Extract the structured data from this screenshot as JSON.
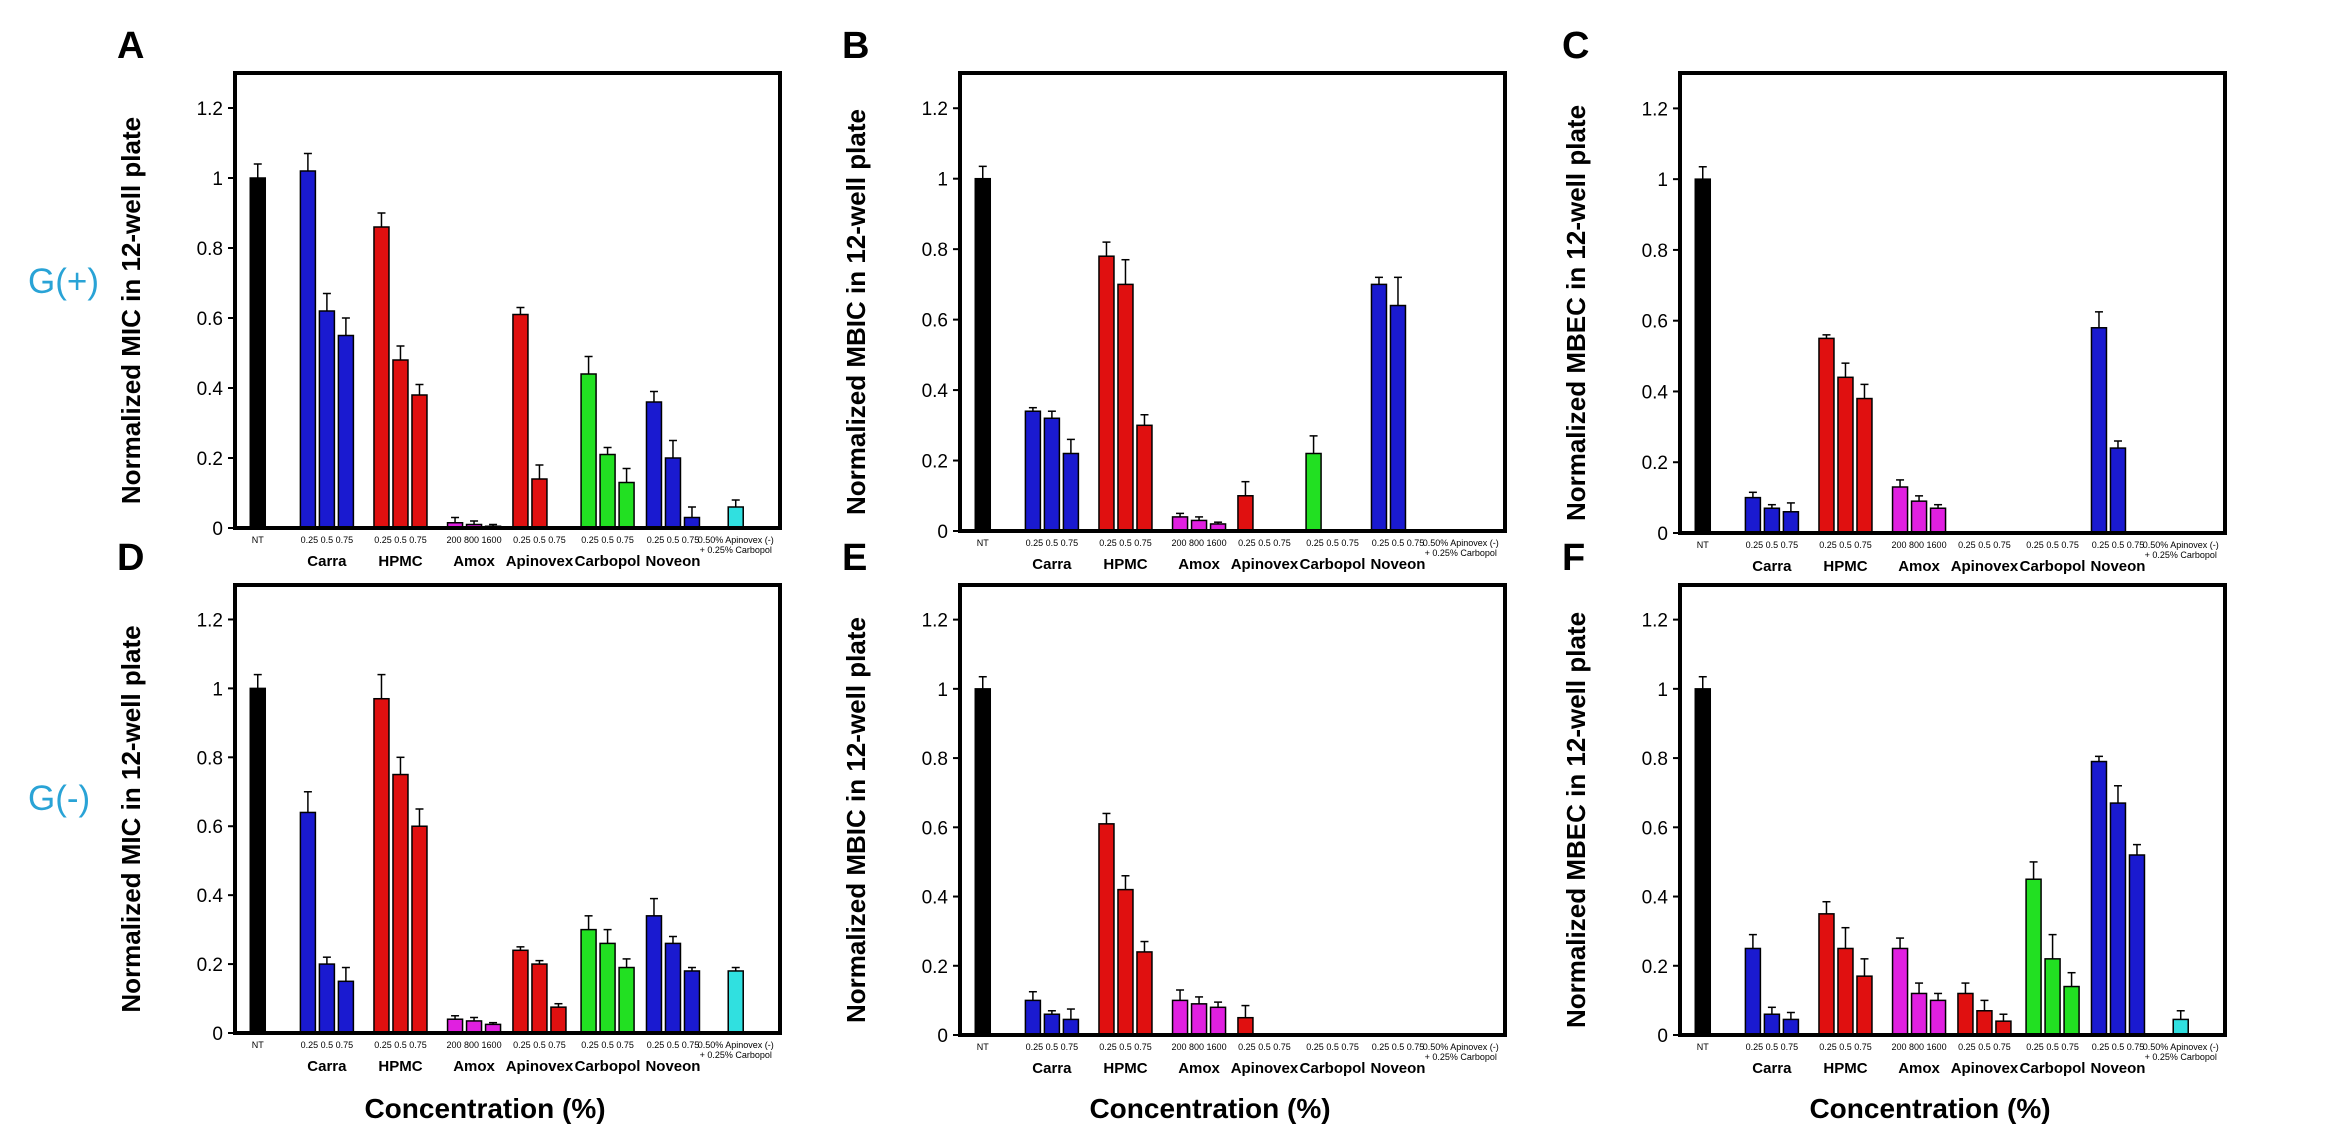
{
  "row_labels": [
    "G(+)",
    "G(-)"
  ],
  "x_axis_label": "Concentration (%)",
  "colors": {
    "NT": "#000000",
    "Carra": "#1a1ad0",
    "HPMC": "#e01010",
    "Amox": "#e020e0",
    "Apinovex": "#e01010",
    "Carbopol": "#22e022",
    "Noveon": "#1a1ad0",
    "Combo": "#30e0e0"
  },
  "chart_data": [
    {
      "panel": "A",
      "type": "bar",
      "ylabel": "Normalized MIC in 12-well plate",
      "ylim": [
        0,
        1.3
      ],
      "yticks": [
        "0",
        "0.2",
        "0.4",
        "0.6",
        "0.8",
        "1",
        "1.2"
      ],
      "grid": false,
      "groups": [
        {
          "name": "",
          "conc_label": "NT",
          "values": [
            1.0
          ],
          "errors": [
            0.04
          ]
        },
        {
          "name": "Carra",
          "conc_label": "0.25 0.5 0.75",
          "values": [
            1.02,
            0.62,
            0.55
          ],
          "errors": [
            0.05,
            0.05,
            0.05
          ]
        },
        {
          "name": "HPMC",
          "conc_label": "0.25 0.5 0.75",
          "values": [
            0.86,
            0.48,
            0.38
          ],
          "errors": [
            0.04,
            0.04,
            0.03
          ]
        },
        {
          "name": "Amox",
          "conc_label": "200 800 1600",
          "values": [
            0.015,
            0.01,
            0.005
          ],
          "errors": [
            0.015,
            0.01,
            0.005
          ]
        },
        {
          "name": "Apinovex",
          "conc_label": "0.25 0.5 0.75",
          "values": [
            0.61,
            0.14,
            0.0
          ],
          "errors": [
            0.02,
            0.04,
            0.0
          ]
        },
        {
          "name": "Carbopol",
          "conc_label": "0.25 0.5 0.75",
          "values": [
            0.44,
            0.21,
            0.13
          ],
          "errors": [
            0.05,
            0.02,
            0.04
          ]
        },
        {
          "name": "Noveon",
          "conc_label": "0.25 0.5 0.75",
          "values": [
            0.36,
            0.2,
            0.03
          ],
          "errors": [
            0.03,
            0.05,
            0.03
          ]
        },
        {
          "name": "",
          "conc_label": "0.50% Apinovex (-)",
          "conc_label2": "+ 0.25% Carbopol",
          "values": [
            0.06
          ],
          "errors": [
            0.02
          ]
        }
      ]
    },
    {
      "panel": "B",
      "type": "bar",
      "ylabel": "Normalized MBIC in 12-well plate",
      "ylim": [
        0,
        1.3
      ],
      "yticks": [
        "0",
        "0.2",
        "0.4",
        "0.6",
        "0.8",
        "1",
        "1.2"
      ],
      "grid": false,
      "groups": [
        {
          "name": "",
          "conc_label": "NT",
          "values": [
            1.0
          ],
          "errors": [
            0.035
          ]
        },
        {
          "name": "Carra",
          "conc_label": "0.25 0.5 0.75",
          "values": [
            0.34,
            0.32,
            0.22
          ],
          "errors": [
            0.01,
            0.02,
            0.04
          ]
        },
        {
          "name": "HPMC",
          "conc_label": "0.25 0.5 0.75",
          "values": [
            0.78,
            0.7,
            0.3
          ],
          "errors": [
            0.04,
            0.07,
            0.03
          ]
        },
        {
          "name": "Amox",
          "conc_label": "200 800 1600",
          "values": [
            0.04,
            0.03,
            0.02
          ],
          "errors": [
            0.01,
            0.01,
            0.005
          ]
        },
        {
          "name": "Apinovex",
          "conc_label": "0.25 0.5 0.75",
          "values": [
            0.1,
            0.0,
            0.0
          ],
          "errors": [
            0.04,
            0.0,
            0.0
          ]
        },
        {
          "name": "Carbopol",
          "conc_label": "0.25 0.5 0.75",
          "values": [
            0.22,
            0.0,
            0.0
          ],
          "errors": [
            0.05,
            0.0,
            0.0
          ]
        },
        {
          "name": "Noveon",
          "conc_label": "0.25 0.5 0.75",
          "values": [
            0.7,
            0.64,
            0.0
          ],
          "errors": [
            0.02,
            0.08,
            0.0
          ]
        },
        {
          "name": "",
          "conc_label": "0.50% Apinovex (-)",
          "conc_label2": "+ 0.25% Carbopol",
          "values": [
            0.0
          ],
          "errors": [
            0.0
          ]
        }
      ]
    },
    {
      "panel": "C",
      "type": "bar",
      "ylabel": "Normalized MBEC in 12-well plate",
      "ylim": [
        0,
        1.3
      ],
      "yticks": [
        "0",
        "0.2",
        "0.4",
        "0.6",
        "0.8",
        "1",
        "1.2"
      ],
      "grid": false,
      "groups": [
        {
          "name": "",
          "conc_label": "NT",
          "values": [
            1.0
          ],
          "errors": [
            0.035
          ]
        },
        {
          "name": "Carra",
          "conc_label": "0.25 0.5 0.75",
          "values": [
            0.1,
            0.07,
            0.06
          ],
          "errors": [
            0.015,
            0.01,
            0.025
          ]
        },
        {
          "name": "HPMC",
          "conc_label": "0.25 0.5 0.75",
          "values": [
            0.55,
            0.44,
            0.38
          ],
          "errors": [
            0.01,
            0.04,
            0.04
          ]
        },
        {
          "name": "Amox",
          "conc_label": "200 800 1600",
          "values": [
            0.13,
            0.09,
            0.07
          ],
          "errors": [
            0.02,
            0.015,
            0.01
          ]
        },
        {
          "name": "Apinovex",
          "conc_label": "0.25 0.5 0.75",
          "values": [
            0.0,
            0.0,
            0.0
          ],
          "errors": [
            0.0,
            0.0,
            0.0
          ]
        },
        {
          "name": "Carbopol",
          "conc_label": "0.25 0.5 0.75",
          "values": [
            0.0,
            0.0,
            0.0
          ],
          "errors": [
            0.0,
            0.0,
            0.0
          ]
        },
        {
          "name": "Noveon",
          "conc_label": "0.25 0.5 0.75",
          "values": [
            0.58,
            0.24,
            0.0
          ],
          "errors": [
            0.045,
            0.02,
            0.0
          ]
        },
        {
          "name": "",
          "conc_label": "0.50% Apinovex (-)",
          "conc_label2": "+ 0.25% Carbopol",
          "values": [
            0.0
          ],
          "errors": [
            0.0
          ]
        }
      ]
    },
    {
      "panel": "D",
      "type": "bar",
      "ylabel": "Normalized MIC in 12-well plate",
      "ylim": [
        0,
        1.3
      ],
      "yticks": [
        "0",
        "0.2",
        "0.4",
        "0.6",
        "0.8",
        "1",
        "1.2"
      ],
      "grid": false,
      "groups": [
        {
          "name": "",
          "conc_label": "NT",
          "values": [
            1.0
          ],
          "errors": [
            0.04
          ]
        },
        {
          "name": "Carra",
          "conc_label": "0.25 0.5 0.75",
          "values": [
            0.64,
            0.2,
            0.15
          ],
          "errors": [
            0.06,
            0.02,
            0.04
          ]
        },
        {
          "name": "HPMC",
          "conc_label": "0.25 0.5 0.75",
          "values": [
            0.97,
            0.75,
            0.6
          ],
          "errors": [
            0.07,
            0.05,
            0.05
          ]
        },
        {
          "name": "Amox",
          "conc_label": "200 800 1600",
          "values": [
            0.04,
            0.035,
            0.025
          ],
          "errors": [
            0.01,
            0.01,
            0.005
          ]
        },
        {
          "name": "Apinovex",
          "conc_label": "0.25 0.5 0.75",
          "values": [
            0.24,
            0.2,
            0.075
          ],
          "errors": [
            0.01,
            0.01,
            0.01
          ]
        },
        {
          "name": "Carbopol",
          "conc_label": "0.25 0.5 0.75",
          "values": [
            0.3,
            0.26,
            0.19
          ],
          "errors": [
            0.04,
            0.04,
            0.025
          ]
        },
        {
          "name": "Noveon",
          "conc_label": "0.25 0.5 0.75",
          "values": [
            0.34,
            0.26,
            0.18
          ],
          "errors": [
            0.05,
            0.02,
            0.01
          ]
        },
        {
          "name": "",
          "conc_label": "0.50% Apinovex (-)",
          "conc_label2": "+ 0.25% Carbopol",
          "values": [
            0.18
          ],
          "errors": [
            0.01
          ]
        }
      ]
    },
    {
      "panel": "E",
      "type": "bar",
      "ylabel": "Normalized MBIC in 12-well plate",
      "ylim": [
        0,
        1.3
      ],
      "yticks": [
        "0",
        "0.2",
        "0.4",
        "0.6",
        "0.8",
        "1",
        "1.2"
      ],
      "grid": false,
      "groups": [
        {
          "name": "",
          "conc_label": "NT",
          "values": [
            1.0
          ],
          "errors": [
            0.035
          ]
        },
        {
          "name": "Carra",
          "conc_label": "0.25 0.5 0.75",
          "values": [
            0.1,
            0.06,
            0.045
          ],
          "errors": [
            0.025,
            0.01,
            0.03
          ]
        },
        {
          "name": "HPMC",
          "conc_label": "0.25 0.5 0.75",
          "values": [
            0.61,
            0.42,
            0.24
          ],
          "errors": [
            0.03,
            0.04,
            0.03
          ]
        },
        {
          "name": "Amox",
          "conc_label": "200 800 1600",
          "values": [
            0.1,
            0.09,
            0.08
          ],
          "errors": [
            0.03,
            0.02,
            0.015
          ]
        },
        {
          "name": "Apinovex",
          "conc_label": "0.25 0.5 0.75",
          "values": [
            0.05,
            0.0,
            0.0
          ],
          "errors": [
            0.035,
            0.0,
            0.0
          ]
        },
        {
          "name": "Carbopol",
          "conc_label": "0.25 0.5 0.75",
          "values": [
            0.0,
            0.0,
            0.0
          ],
          "errors": [
            0.0,
            0.0,
            0.0
          ]
        },
        {
          "name": "Noveon",
          "conc_label": "0.25 0.5 0.75",
          "values": [
            0.0,
            0.0,
            0.0
          ],
          "errors": [
            0.0,
            0.0,
            0.0
          ]
        },
        {
          "name": "",
          "conc_label": "0.50% Apinovex (-)",
          "conc_label2": "+ 0.25% Carbopol",
          "values": [
            0.0
          ],
          "errors": [
            0.0
          ]
        }
      ]
    },
    {
      "panel": "F",
      "type": "bar",
      "ylabel": "Normalized MBEC in 12-well plate",
      "ylim": [
        0,
        1.3
      ],
      "yticks": [
        "0",
        "0.2",
        "0.4",
        "0.6",
        "0.8",
        "1",
        "1.2"
      ],
      "grid": false,
      "groups": [
        {
          "name": "",
          "conc_label": "NT",
          "values": [
            1.0
          ],
          "errors": [
            0.035
          ]
        },
        {
          "name": "Carra",
          "conc_label": "0.25 0.5 0.75",
          "values": [
            0.25,
            0.06,
            0.045
          ],
          "errors": [
            0.04,
            0.02,
            0.02
          ]
        },
        {
          "name": "HPMC",
          "conc_label": "0.25 0.5 0.75",
          "values": [
            0.35,
            0.25,
            0.17
          ],
          "errors": [
            0.035,
            0.06,
            0.05
          ]
        },
        {
          "name": "Amox",
          "conc_label": "200 800 1600",
          "values": [
            0.25,
            0.12,
            0.1
          ],
          "errors": [
            0.03,
            0.03,
            0.02
          ]
        },
        {
          "name": "Apinovex",
          "conc_label": "0.25 0.5 0.75",
          "values": [
            0.12,
            0.07,
            0.04
          ],
          "errors": [
            0.03,
            0.03,
            0.02
          ]
        },
        {
          "name": "Carbopol",
          "conc_label": "0.25 0.5 0.75",
          "values": [
            0.45,
            0.22,
            0.14
          ],
          "errors": [
            0.05,
            0.07,
            0.04
          ]
        },
        {
          "name": "Noveon",
          "conc_label": "0.25 0.5 0.75",
          "values": [
            0.79,
            0.67,
            0.52
          ],
          "errors": [
            0.015,
            0.05,
            0.03
          ]
        },
        {
          "name": "",
          "conc_label": "0.50% Apinovex (-)",
          "conc_label2": "+ 0.25% Carbopol",
          "values": [
            0.045
          ],
          "errors": [
            0.025
          ]
        }
      ]
    }
  ]
}
